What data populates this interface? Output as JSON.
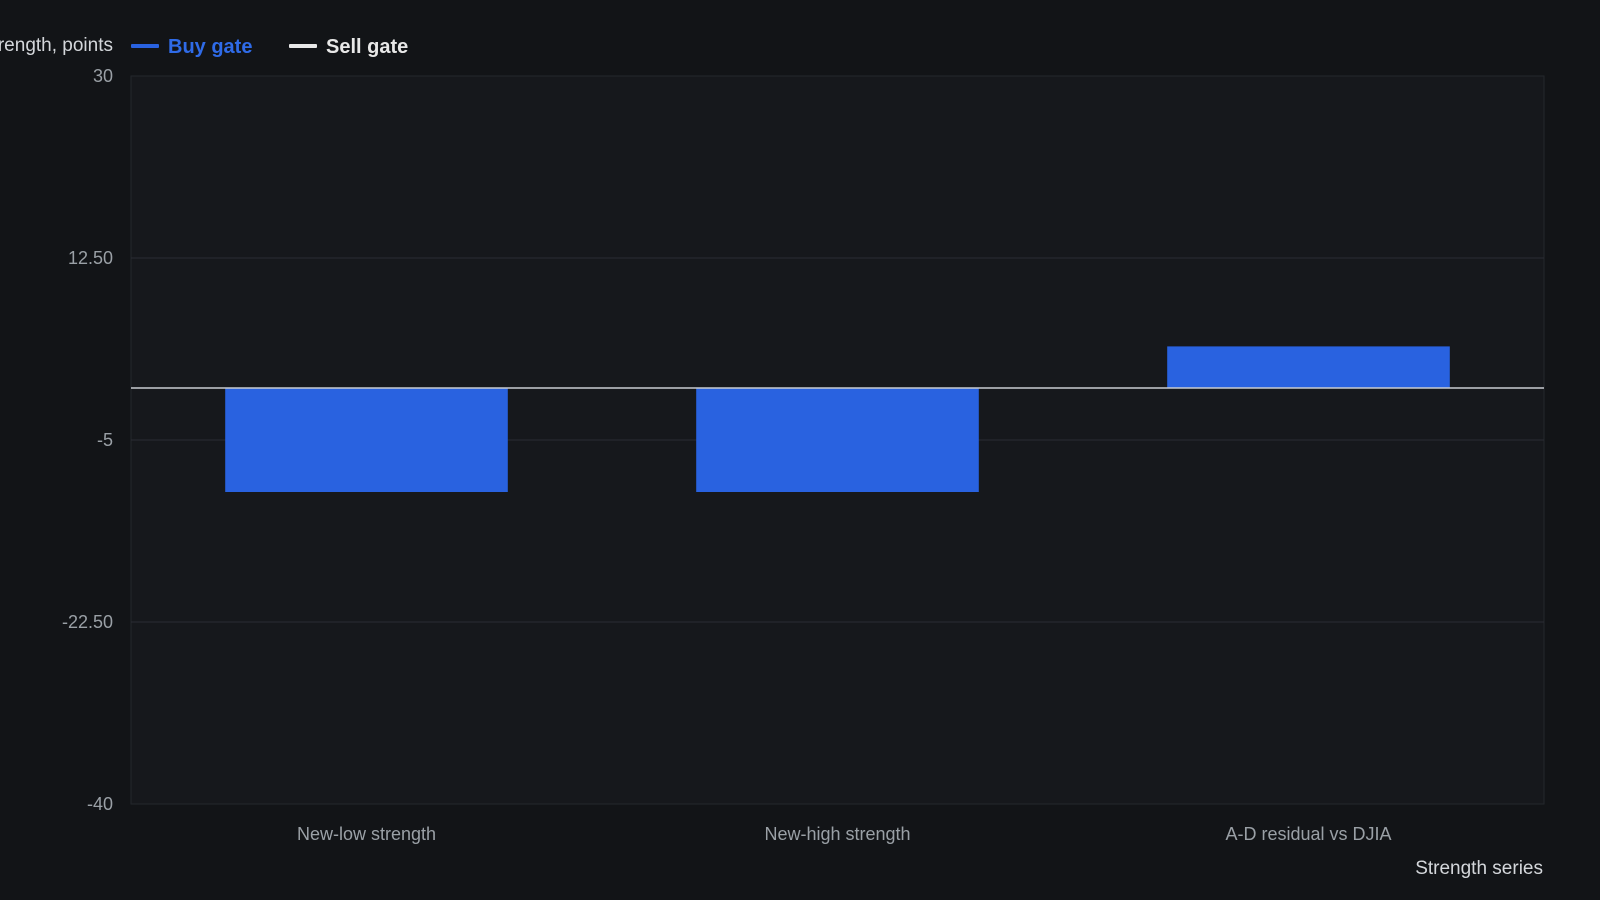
{
  "chart_data": {
    "type": "bar",
    "ylabel": "Strength, points",
    "xlabel": "Strength series",
    "categories": [
      "New-low strength",
      "New-high strength",
      "A-D residual vs DJIA"
    ],
    "values": [
      -10,
      -10,
      4
    ],
    "ylim": [
      -40,
      30
    ],
    "yticks": [
      30,
      12.5,
      -5,
      -22.5,
      -40
    ],
    "ytick_labels": [
      "30",
      "12.50",
      "-5",
      "-22.50",
      "-40"
    ],
    "reference_line": 0,
    "grid": true,
    "legend_position": "top-left",
    "legend": [
      {
        "label": "Buy gate",
        "color": "#2962e0"
      },
      {
        "label": "Sell gate",
        "color": "#e8e8e8"
      }
    ],
    "colors": {
      "background": "#121417",
      "plot_background": "#16181c",
      "bar": "#2962e0",
      "grid": "#2a2d33",
      "zero_line": "#c9ccd1"
    }
  }
}
